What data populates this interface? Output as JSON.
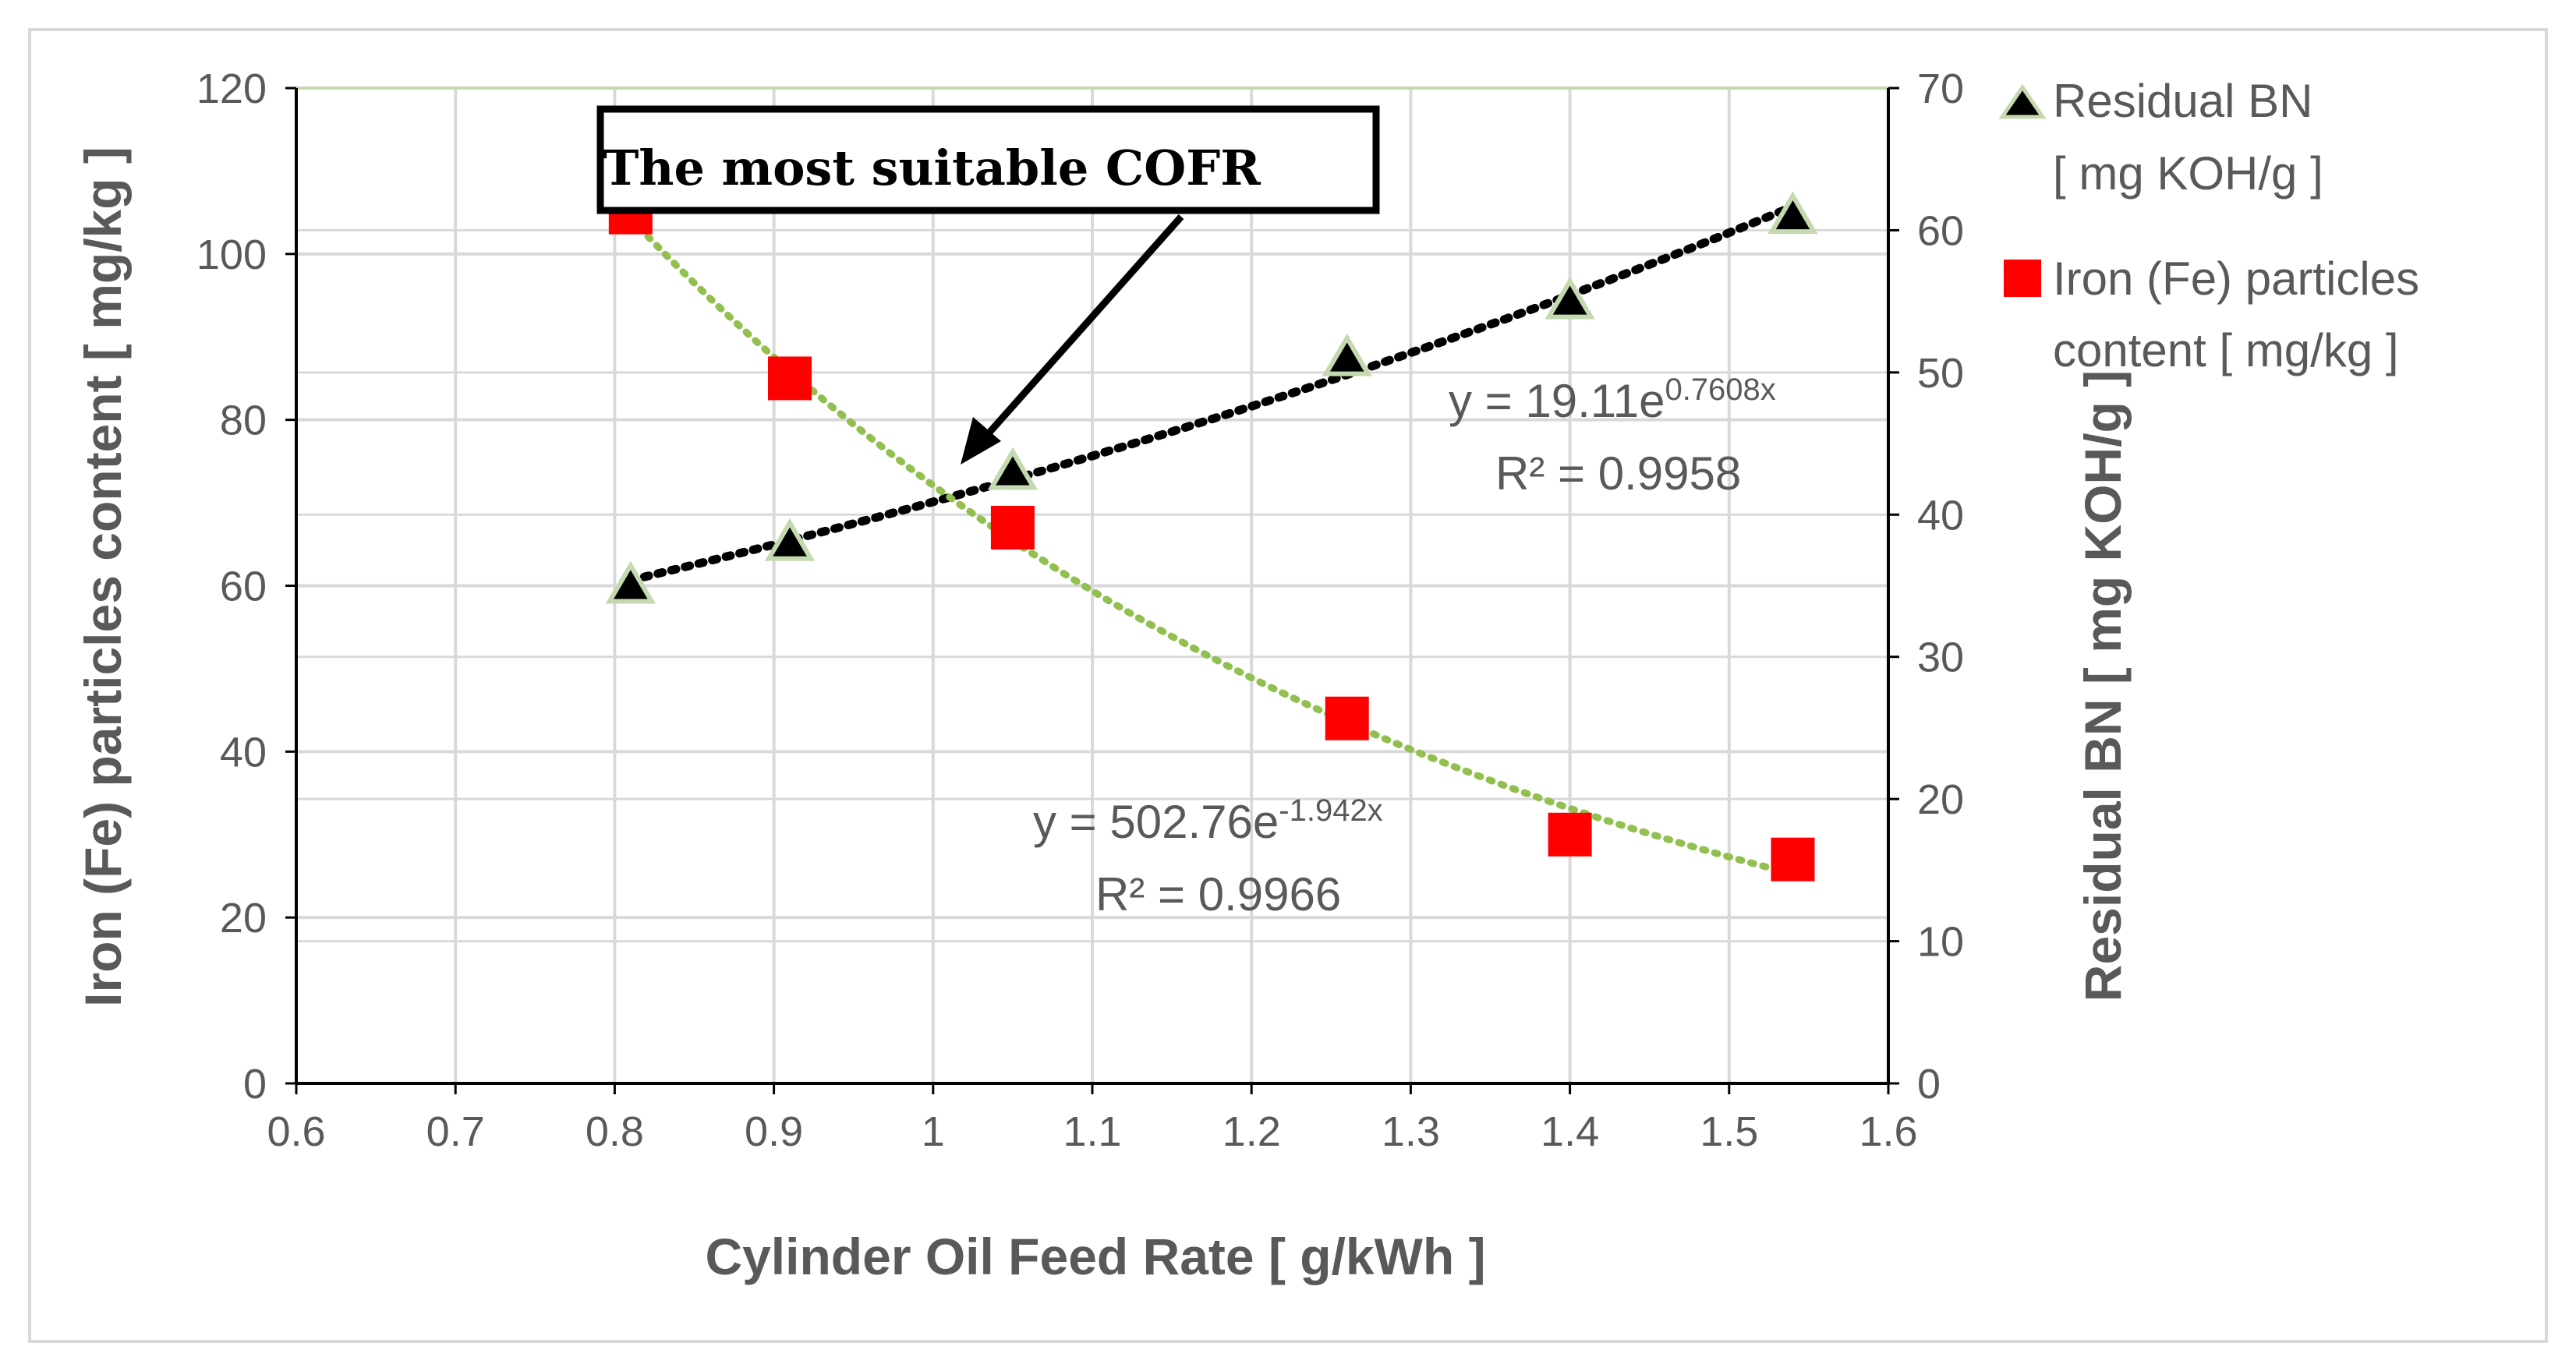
{
  "chart_data": {
    "type": "scatter",
    "xlabel": "Cylinder Oil Feed Rate  [ g/kWh ]",
    "ylabel": "Iron (Fe) particles content [ mg/kg ]",
    "y2label": "Residual BN [ mg KOH/g ]",
    "xlim": [
      0.6,
      1.6
    ],
    "ylim": [
      0,
      120
    ],
    "y2lim": [
      0,
      70
    ],
    "x_ticks": [
      "0.6",
      "0.7",
      "0.8",
      "0.9",
      "1",
      "1.1",
      "1.2",
      "1.3",
      "1.4",
      "1.5",
      "1.6"
    ],
    "y_ticks": [
      "0",
      "20",
      "40",
      "60",
      "80",
      "100",
      "120"
    ],
    "y2_ticks": [
      "0",
      "10",
      "20",
      "30",
      "40",
      "50",
      "60",
      "70"
    ],
    "grid": true,
    "legend_position": "right",
    "series": [
      {
        "name": "Residual BN [ mg KOH/g ]",
        "legend_lines": [
          "Residual BN",
          "[ mg KOH/g ]"
        ],
        "axis": "right",
        "marker": "triangle",
        "marker_color": "#000000",
        "marker_edge": "#c5d9b1",
        "x": [
          0.81,
          0.91,
          1.05,
          1.26,
          1.4,
          1.54
        ],
        "y": [
          35,
          38,
          43,
          51,
          55,
          61
        ],
        "trendline": {
          "type": "exponential",
          "a": 19.11,
          "b": 0.7608,
          "color": "#000000",
          "equation_base": "y = 19.11e",
          "equation_exp": "0.7608x",
          "r2_text": "R² = 0.9958"
        }
      },
      {
        "name": "Iron (Fe) particles content  [ mg/kg ]",
        "legend_lines": [
          "Iron (Fe) particles",
          "content  [ mg/kg ]"
        ],
        "axis": "left",
        "marker": "square",
        "marker_color": "#ff0000",
        "x": [
          0.81,
          0.91,
          1.05,
          1.26,
          1.4,
          1.54
        ],
        "y": [
          105,
          85,
          67,
          44,
          30,
          27
        ],
        "trendline": {
          "type": "exponential",
          "a": 502.76,
          "b": -1.942,
          "color": "#92c050",
          "equation_base": "y = 502.76e",
          "equation_exp": "-1.942x",
          "r2_text": "R² = 0.9966"
        }
      }
    ],
    "annotation": {
      "text": "The most suitable COFR",
      "points_to_x": 1.02
    }
  }
}
